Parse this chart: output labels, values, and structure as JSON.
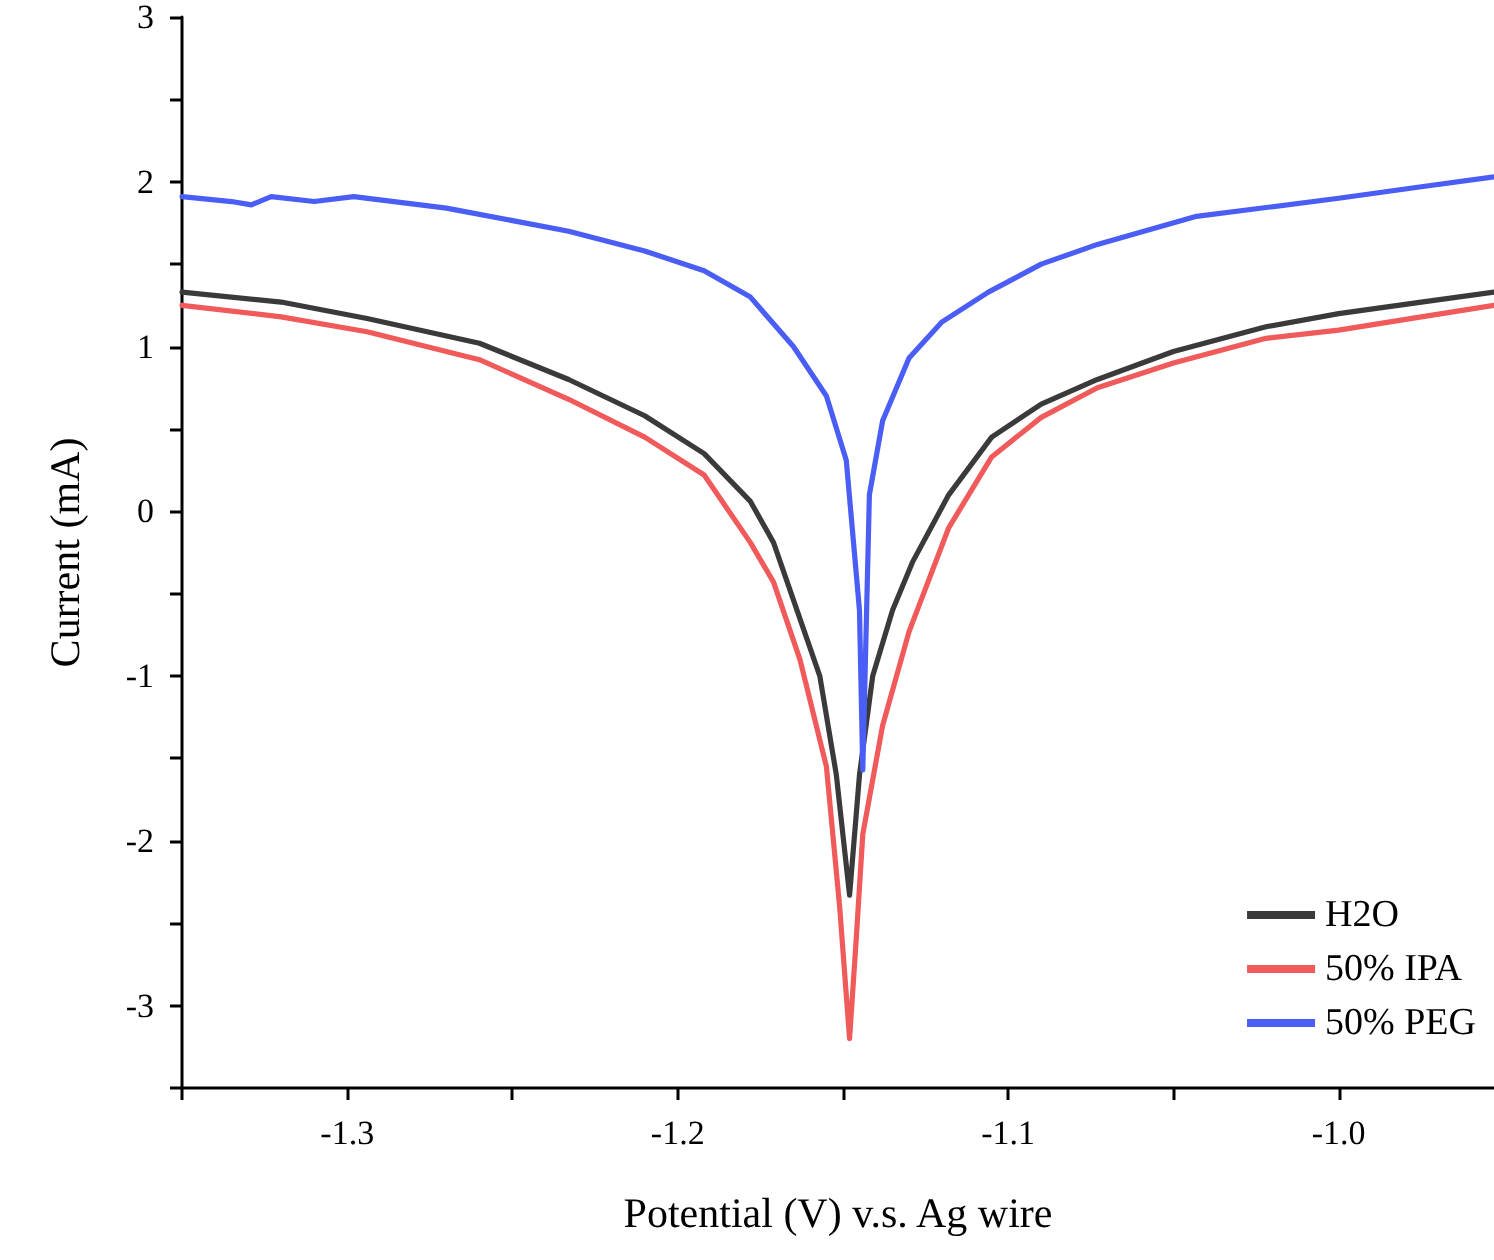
{
  "chart_data": {
    "type": "line",
    "xlabel": "Potential (V) v.s. Ag wire",
    "ylabel": "Current (mA)",
    "xlim": [
      -1.35,
      -0.953
    ],
    "ylim": [
      -3.5,
      3
    ],
    "xticks": [
      {
        "value": -1.35,
        "label": null
      },
      -1.3,
      {
        "value": -1.25,
        "label": null
      },
      -1.2,
      {
        "value": -1.15,
        "label": null
      },
      -1.1,
      {
        "value": -1.05,
        "label": null
      },
      {
        "value": -1.0,
        "label": "-1.0"
      }
    ],
    "yticks": [
      {
        "value": -3.5,
        "label": null
      },
      -3,
      {
        "value": -2.5,
        "label": null
      },
      -2,
      {
        "value": -1.5,
        "label": null
      },
      -1,
      {
        "value": -0.5,
        "label": null
      },
      0,
      {
        "value": 0.5,
        "label": null
      },
      1,
      {
        "value": 1.5,
        "label": null
      },
      2,
      {
        "value": 2.5,
        "label": null
      },
      3
    ],
    "grid": false,
    "legend": "bottom right",
    "marker": "none",
    "line_style": "solid",
    "series": [
      {
        "name": "H2O",
        "color": "#3a3a3a",
        "x": [
          -1.35,
          -1.32,
          -1.294,
          -1.26,
          -1.233,
          -1.21,
          -1.192,
          -1.178,
          -1.171,
          -1.157,
          -1.152,
          -1.148,
          -1.145,
          -1.141,
          -1.135,
          -1.129,
          -1.118,
          -1.105,
          -1.09,
          -1.073,
          -1.05,
          -1.022,
          -1.0,
          -0.975,
          -0.953
        ],
        "values": [
          1.33,
          1.27,
          1.17,
          1.02,
          0.8,
          0.58,
          0.35,
          0.06,
          -0.19,
          -1.0,
          -1.6,
          -2.33,
          -1.6,
          -1.0,
          -0.6,
          -0.31,
          0.1,
          0.45,
          0.65,
          0.8,
          0.97,
          1.12,
          1.2,
          1.27,
          1.33
        ]
      },
      {
        "name": "50% IPA",
        "color": "#f05a5a",
        "x": [
          -1.35,
          -1.32,
          -1.294,
          -1.26,
          -1.233,
          -1.21,
          -1.192,
          -1.178,
          -1.171,
          -1.163,
          -1.155,
          -1.151,
          -1.148,
          -1.146,
          -1.144,
          -1.138,
          -1.13,
          -1.118,
          -1.105,
          -1.09,
          -1.073,
          -1.05,
          -1.022,
          -1.0,
          -0.975,
          -0.953
        ],
        "values": [
          1.25,
          1.18,
          1.09,
          0.92,
          0.68,
          0.45,
          0.22,
          -0.19,
          -0.43,
          -0.9,
          -1.55,
          -2.4,
          -3.2,
          -2.6,
          -1.96,
          -1.3,
          -0.73,
          -0.1,
          0.33,
          0.57,
          0.75,
          0.9,
          1.05,
          1.1,
          1.18,
          1.25
        ]
      },
      {
        "name": "50% PEG",
        "color": "#4a5ef5",
        "x": [
          -1.35,
          -1.335,
          -1.329,
          -1.323,
          -1.31,
          -1.298,
          -1.27,
          -1.233,
          -1.21,
          -1.192,
          -1.178,
          -1.165,
          -1.155,
          -1.149,
          -1.145,
          -1.144,
          -1.142,
          -1.138,
          -1.13,
          -1.12,
          -1.106,
          -1.09,
          -1.073,
          -1.043,
          -1.0,
          -0.975,
          -0.953
        ],
        "values": [
          1.91,
          1.88,
          1.86,
          1.91,
          1.88,
          1.91,
          1.84,
          1.7,
          1.58,
          1.46,
          1.3,
          1.0,
          0.7,
          0.31,
          -0.6,
          -1.57,
          0.1,
          0.55,
          0.93,
          1.15,
          1.33,
          1.5,
          1.62,
          1.79,
          1.9,
          1.97,
          2.03
        ]
      }
    ]
  }
}
